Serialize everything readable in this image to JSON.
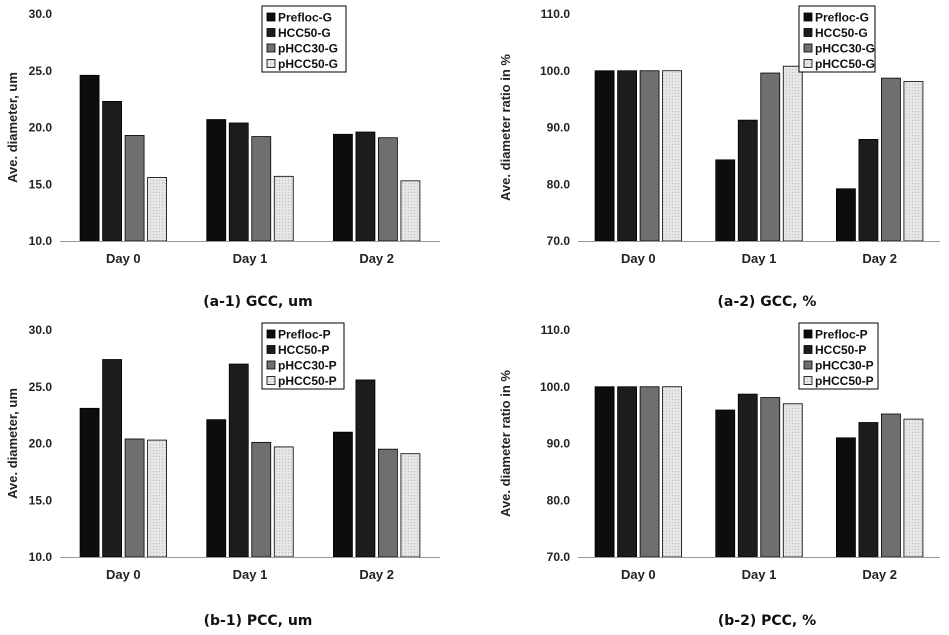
{
  "chart_data": [
    {
      "type": "bar",
      "title": "(a-1) GCC, um",
      "xlabel": "",
      "ylabel": "Ave. diameter, um",
      "ylim": [
        10,
        30
      ],
      "yticks": [
        "10.0",
        "15.0",
        "20.0",
        "25.0",
        "30.0"
      ],
      "categories": [
        "Day 0",
        "Day 1",
        "Day 2"
      ],
      "legend_position": "top-center",
      "series": [
        {
          "name": "Prefloc-G",
          "values": [
            24.6,
            20.7,
            19.4
          ]
        },
        {
          "name": "HCC50-G",
          "values": [
            22.3,
            20.4,
            19.6
          ]
        },
        {
          "name": "pHCC30-G",
          "values": [
            19.3,
            19.2,
            19.1
          ]
        },
        {
          "name": "pHCC50-G",
          "values": [
            15.6,
            15.7,
            15.3
          ]
        }
      ]
    },
    {
      "type": "bar",
      "title": "(a-2) GCC, %",
      "xlabel": "",
      "ylabel": "Ave. diameter ratio in %",
      "ylim": [
        70,
        110
      ],
      "yticks": [
        "70.0",
        "80.0",
        "90.0",
        "100.0",
        "110.0"
      ],
      "categories": [
        "Day 0",
        "Day 1",
        "Day 2"
      ],
      "legend_position": "top-right",
      "series": [
        {
          "name": "Prefloc-G",
          "values": [
            100.0,
            84.3,
            79.2
          ]
        },
        {
          "name": "HCC50-G",
          "values": [
            100.0,
            91.3,
            87.9
          ]
        },
        {
          "name": "pHCC30-G",
          "values": [
            100.0,
            99.6,
            98.7
          ]
        },
        {
          "name": "pHCC50-G",
          "values": [
            100.0,
            100.8,
            98.1
          ]
        }
      ]
    },
    {
      "type": "bar",
      "title": "(b-1) PCC, um",
      "xlabel": "",
      "ylabel": "Ave. diameter, um",
      "ylim": [
        10,
        30
      ],
      "yticks": [
        "10.0",
        "15.0",
        "20.0",
        "25.0",
        "30.0"
      ],
      "categories": [
        "Day 0",
        "Day 1",
        "Day 2"
      ],
      "legend_position": "top-right",
      "series": [
        {
          "name": "Prefloc-P",
          "values": [
            23.1,
            22.1,
            21.0
          ]
        },
        {
          "name": "HCC50-P",
          "values": [
            27.4,
            27.0,
            25.6
          ]
        },
        {
          "name": "pHCC30-P",
          "values": [
            20.4,
            20.1,
            19.5
          ]
        },
        {
          "name": "pHCC50-P",
          "values": [
            20.3,
            19.7,
            19.1
          ]
        }
      ]
    },
    {
      "type": "bar",
      "title": "(b-2) PCC, %",
      "xlabel": "",
      "ylabel": "Ave. diameter ratio in %",
      "ylim": [
        70,
        110
      ],
      "yticks": [
        "70.0",
        "80.0",
        "90.0",
        "100.0",
        "110.0"
      ],
      "categories": [
        "Day 0",
        "Day 1",
        "Day 2"
      ],
      "legend_position": "top-right",
      "series": [
        {
          "name": "Prefloc-P",
          "values": [
            100.0,
            95.9,
            91.0
          ]
        },
        {
          "name": "HCC50-P",
          "values": [
            100.0,
            98.7,
            93.7
          ]
        },
        {
          "name": "pHCC30-P",
          "values": [
            100.0,
            98.1,
            95.2
          ]
        },
        {
          "name": "pHCC50-P",
          "values": [
            100.0,
            97.0,
            94.3
          ]
        }
      ]
    }
  ],
  "colors": {
    "series_fill": [
      "#0d0d0d",
      "#1c1c1c",
      "#6f6f6f",
      "#e6e6e6"
    ],
    "bar_stroke": "#000000",
    "axis": "#999999"
  }
}
